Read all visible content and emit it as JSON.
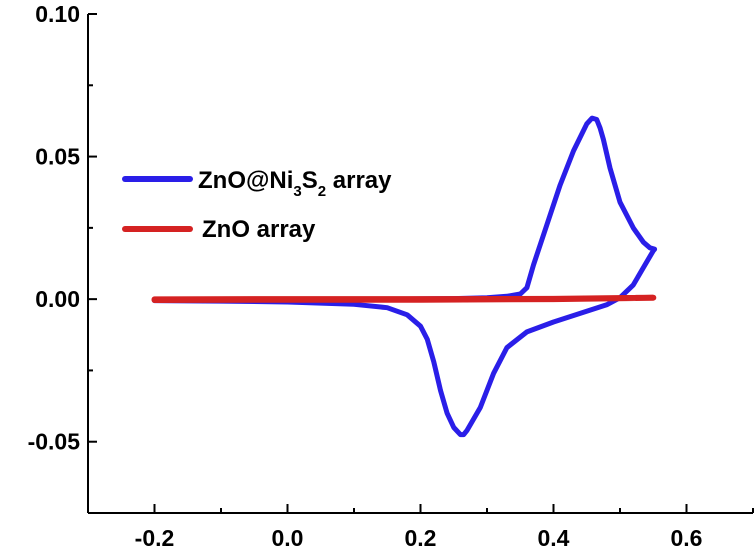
{
  "chart_data": {
    "type": "line",
    "title": "",
    "xlabel": "",
    "ylabel": "",
    "xlim": [
      -0.3,
      0.7
    ],
    "ylim": [
      -0.075,
      0.1
    ],
    "x_ticks": [
      -0.2,
      0.0,
      0.2,
      0.4,
      0.6
    ],
    "x_tick_labels": [
      "-0.2",
      "0.0",
      "0.2",
      "0.4",
      "0.6"
    ],
    "y_ticks": [
      -0.05,
      0.0,
      0.05,
      0.1
    ],
    "y_tick_labels": [
      "-0.05",
      "0.00",
      "0.05",
      "0.10"
    ],
    "grid": false,
    "legend_position": "left",
    "series": [
      {
        "name": "ZnO@Ni3S2 array",
        "name_parts": {
          "pre": "ZnO@Ni",
          "sub1": "3",
          "mid": "S",
          "sub2": "2",
          "post": " array"
        },
        "color": "#2a1ee8",
        "points": [
          [
            -0.2,
            -0.0005
          ],
          [
            -0.1,
            -0.0007
          ],
          [
            0.0,
            -0.001
          ],
          [
            0.1,
            -0.0018
          ],
          [
            0.15,
            -0.003
          ],
          [
            0.18,
            -0.0055
          ],
          [
            0.2,
            -0.0095
          ],
          [
            0.21,
            -0.014
          ],
          [
            0.22,
            -0.022
          ],
          [
            0.23,
            -0.032
          ],
          [
            0.24,
            -0.04
          ],
          [
            0.25,
            -0.045
          ],
          [
            0.26,
            -0.0475
          ],
          [
            0.265,
            -0.0475
          ],
          [
            0.27,
            -0.046
          ],
          [
            0.29,
            -0.038
          ],
          [
            0.31,
            -0.026
          ],
          [
            0.33,
            -0.017
          ],
          [
            0.36,
            -0.0115
          ],
          [
            0.4,
            -0.008
          ],
          [
            0.44,
            -0.005
          ],
          [
            0.48,
            -0.002
          ],
          [
            0.5,
            0.0005
          ],
          [
            0.52,
            0.005
          ],
          [
            0.535,
            0.011
          ],
          [
            0.55,
            0.017
          ],
          [
            0.552,
            0.0175
          ],
          [
            0.545,
            0.018
          ],
          [
            0.535,
            0.02
          ],
          [
            0.52,
            0.025
          ],
          [
            0.5,
            0.034
          ],
          [
            0.485,
            0.046
          ],
          [
            0.475,
            0.056
          ],
          [
            0.47,
            0.06
          ],
          [
            0.465,
            0.063
          ],
          [
            0.458,
            0.0635
          ],
          [
            0.45,
            0.0615
          ],
          [
            0.43,
            0.052
          ],
          [
            0.41,
            0.04
          ],
          [
            0.39,
            0.026
          ],
          [
            0.37,
            0.012
          ],
          [
            0.36,
            0.004
          ],
          [
            0.35,
            0.0018
          ],
          [
            0.33,
            0.001
          ],
          [
            0.3,
            0.0005
          ],
          [
            0.25,
            0.0002
          ],
          [
            0.2,
            0.0001
          ],
          [
            0.1,
            -0.0001
          ],
          [
            0.0,
            -0.0003
          ],
          [
            -0.1,
            -0.0003
          ],
          [
            -0.2,
            -0.0001
          ]
        ]
      },
      {
        "name": "ZnO array",
        "color": "#d52222",
        "points": [
          [
            -0.2,
            -0.0001
          ],
          [
            0.0,
            0.0
          ],
          [
            0.2,
            0.0
          ],
          [
            0.4,
            0.0001
          ],
          [
            0.55,
            0.0005
          ],
          [
            0.4,
            0.0
          ],
          [
            0.2,
            -0.0002
          ],
          [
            0.0,
            -0.0002
          ],
          [
            -0.2,
            -0.0003
          ]
        ]
      }
    ]
  }
}
